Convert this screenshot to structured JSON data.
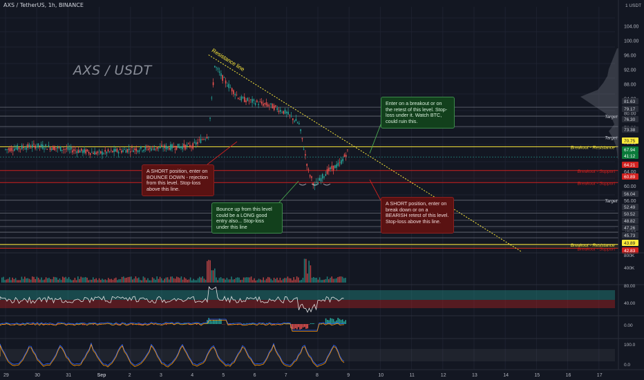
{
  "header": {
    "symbol_line": "AXS / TetherUS, 1h, BINANCE"
  },
  "watermark": "AXS / USDT",
  "price_axis": {
    "unit": "USDT",
    "ticks": [
      "104.00",
      "100.00",
      "96.00",
      "92.00",
      "88.00",
      "84.00",
      "80.00",
      "76.00",
      "72.00",
      "68.00",
      "64.00",
      "60.00",
      "56.00",
      "52.00",
      "48.00",
      "44.00"
    ]
  },
  "volume_axis": {
    "ticks": [
      "800K",
      "400K"
    ]
  },
  "rsi_axis": {
    "ticks": [
      "80.00",
      "40.00"
    ]
  },
  "macd_axis": {
    "ticks": [
      "0.00"
    ]
  },
  "stoch_axis": {
    "ticks": [
      "100.0",
      "0.0"
    ]
  },
  "time_axis": {
    "labels": [
      "29",
      "30",
      "31",
      "Sep",
      "2",
      "3",
      "4",
      "5",
      "6",
      "7",
      "8",
      "9",
      "10",
      "11",
      "12",
      "13",
      "14",
      "15",
      "16",
      "17"
    ]
  },
  "price_badges": [
    {
      "text": "81.63",
      "bg": "#2a2e39",
      "fg": "#d1d4dc"
    },
    {
      "text": "79.17",
      "bg": "#2a2e39",
      "fg": "#d1d4dc"
    },
    {
      "text": "76.30",
      "bg": "#2a2e39",
      "fg": "#d1d4dc"
    },
    {
      "text": "73.38",
      "bg": "#2a2e39",
      "fg": "#d1d4dc"
    },
    {
      "text": "70.75",
      "bg": "#ffeb3b",
      "fg": "#131722"
    },
    {
      "text": "67.94",
      "bg": "#0a7a3a",
      "fg": "#ffffff"
    },
    {
      "text": "41:12",
      "bg": "#0a7a3a",
      "fg": "#ffffff"
    },
    {
      "text": "64.21",
      "bg": "#d0211f",
      "fg": "#ffffff"
    },
    {
      "text": "60.89",
      "bg": "#d0211f",
      "fg": "#ffffff"
    },
    {
      "text": "56.04",
      "bg": "#2a2e39",
      "fg": "#d1d4dc"
    },
    {
      "text": "52.49",
      "bg": "#2a2e39",
      "fg": "#d1d4dc"
    },
    {
      "text": "50.52",
      "bg": "#2a2e39",
      "fg": "#d1d4dc"
    },
    {
      "text": "48.82",
      "bg": "#2a2e39",
      "fg": "#d1d4dc"
    },
    {
      "text": "47.26",
      "bg": "#2a2e39",
      "fg": "#d1d4dc"
    },
    {
      "text": "45.73",
      "bg": "#2a2e39",
      "fg": "#d1d4dc"
    },
    {
      "text": "43.89",
      "bg": "#ffeb3b",
      "fg": "#131722"
    },
    {
      "text": "42.83",
      "bg": "#d0211f",
      "fg": "#ffffff"
    }
  ],
  "level_labels": {
    "target": "Target",
    "breakout_resistance": "Breakout - Resistance",
    "breakout_support": "Breakout - Support"
  },
  "trendline_label": "Resistance line",
  "callouts": {
    "short_bounce": "A SHORT position, enter on BOUNCE DOWN - rejection from this level. Stop-loss above this line.",
    "long_bounce": "Bounce up from this level could be a LONG good entry also... Stop-loss under this line",
    "breakout_entry": "Enter on a breakout or on the retest of this level. Stop-loss under it. Watch BTC, could ruin this.",
    "short_breakdown": "A SHORT position, enter on break down or on a BEARISH retest of this level. Stop-loss above this line."
  },
  "colors": {
    "background": "#131722",
    "bull": "#26a69a",
    "bear": "#ef5350",
    "resistance": "#ffeb3b",
    "support": "#d0211f",
    "rsi_line": "#e6e6e6",
    "stoch_k": "#2962ff",
    "stoch_d": "#ff9800"
  },
  "chart_data": {
    "type": "candlestick",
    "title": "AXS / TetherUS, 1h, BINANCE",
    "ylim": [
      40,
      106
    ],
    "x_range": [
      "29",
      "17"
    ],
    "price_path": [
      {
        "x": "29",
        "y": 70
      },
      {
        "x": "30",
        "y": 71
      },
      {
        "x": "31",
        "y": 70
      },
      {
        "x": "Sep",
        "y": 69
      },
      {
        "x": "2",
        "y": 70
      },
      {
        "x": "3",
        "y": 70.5
      },
      {
        "x": "4",
        "y": 71
      },
      {
        "x": "4.5",
        "y": 74
      },
      {
        "x": "4.7",
        "y": 93
      },
      {
        "x": "5",
        "y": 89
      },
      {
        "x": "5.5",
        "y": 84
      },
      {
        "x": "6",
        "y": 83
      },
      {
        "x": "6.5",
        "y": 82
      },
      {
        "x": "7",
        "y": 80
      },
      {
        "x": "7.4",
        "y": 77
      },
      {
        "x": "7.7",
        "y": 64
      },
      {
        "x": "7.9",
        "y": 60
      },
      {
        "x": "8.3",
        "y": 64
      },
      {
        "x": "8.7",
        "y": 66
      },
      {
        "x": "9",
        "y": 70
      }
    ],
    "horizontal_levels": [
      {
        "price": 81.63,
        "label": ""
      },
      {
        "price": 79.17,
        "label": "Target"
      },
      {
        "price": 76.3,
        "label": ""
      },
      {
        "price": 73.38,
        "label": "Target"
      },
      {
        "price": 70.75,
        "label": "Breakout - Resistance"
      },
      {
        "price": 64.21,
        "label": "Breakout - Support"
      },
      {
        "price": 60.89,
        "label": "Breakout - Support"
      },
      {
        "price": 56.04,
        "label": "Target"
      },
      {
        "price": 52.49,
        "label": ""
      },
      {
        "price": 50.52,
        "label": ""
      },
      {
        "price": 48.82,
        "label": ""
      },
      {
        "price": 47.26,
        "label": ""
      },
      {
        "price": 45.73,
        "label": ""
      },
      {
        "price": 43.89,
        "label": "Breakout - Resistance"
      },
      {
        "price": 42.83,
        "label": "Breakout - Support"
      }
    ],
    "current_price": 67.94,
    "resistance_line": {
      "from": {
        "x": "4.5",
        "y": 96
      },
      "to": {
        "x": "14.5",
        "y": 42
      }
    },
    "volume_peaks": [
      {
        "x": "4.6",
        "value": 800000
      },
      {
        "x": "7.8",
        "value": 800000
      }
    ],
    "rsi_band": [
      40,
      80
    ],
    "stoch_range": [
      0,
      100
    ]
  }
}
